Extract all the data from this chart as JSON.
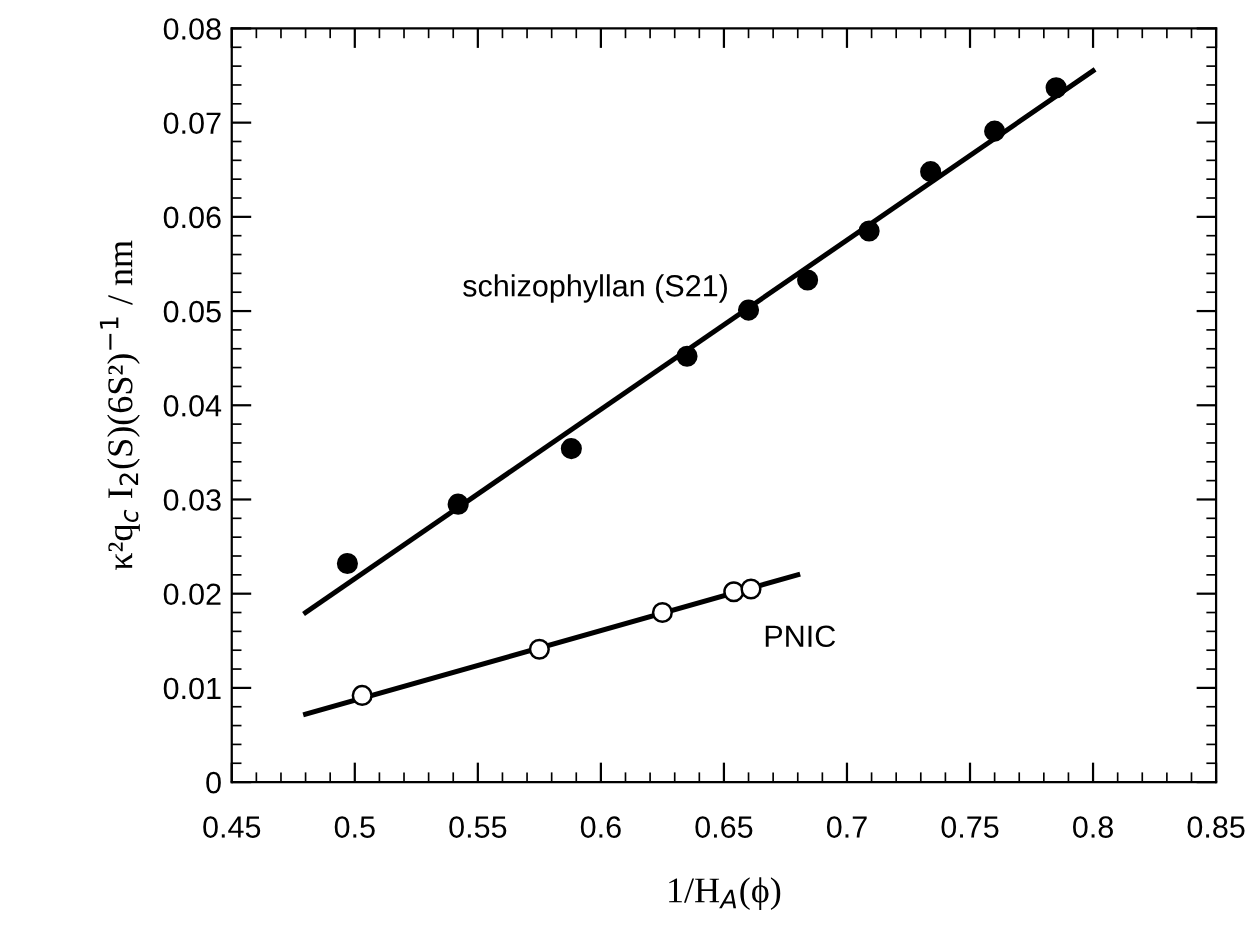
{
  "chart_data": {
    "type": "scatter",
    "xlabel": "1/H$_{A}$(ϕ)",
    "ylabel": "κ²q$_{c}$ I$_{2}$(S)(6S²)$^{−1}$ / nm",
    "xlim": [
      0.45,
      0.85
    ],
    "xticks": [
      0.45,
      0.5,
      0.55,
      0.6,
      0.65,
      0.7,
      0.75,
      0.8,
      0.85
    ],
    "ylim": [
      0,
      0.08
    ],
    "yticks": [
      0,
      0.01,
      0.02,
      0.03,
      0.04,
      0.05,
      0.06,
      0.07,
      0.08
    ],
    "grid": false,
    "legend": false,
    "series": [
      {
        "name": "schizophyllan (S21)",
        "marker": "circle",
        "color": "#000000",
        "x": [
          0.497,
          0.542,
          0.588,
          0.635,
          0.66,
          0.684,
          0.709,
          0.734,
          0.76,
          0.785
        ],
        "values": [
          0.0232,
          0.0295,
          0.0354,
          0.0452,
          0.0501,
          0.0533,
          0.0585,
          0.0648,
          0.0691,
          0.0737
        ]
      },
      {
        "name": "PNIC",
        "marker": "circle",
        "color": "#ffffff",
        "x": [
          0.503,
          0.575,
          0.625,
          0.654,
          0.661
        ],
        "values": [
          0.0092,
          0.0141,
          0.018,
          0.0202,
          0.0205
        ]
      },
      {
        "type": "line",
        "marker": "none",
        "color": "#000000",
        "x": [
          0.48,
          0.8
        ],
        "values": [
          0.018,
          0.0755
        ]
      },
      {
        "type": "line",
        "marker": "none",
        "color": "#000000",
        "x": [
          0.48,
          0.68
        ],
        "values": [
          0.0072,
          0.022
        ]
      }
    ]
  }
}
